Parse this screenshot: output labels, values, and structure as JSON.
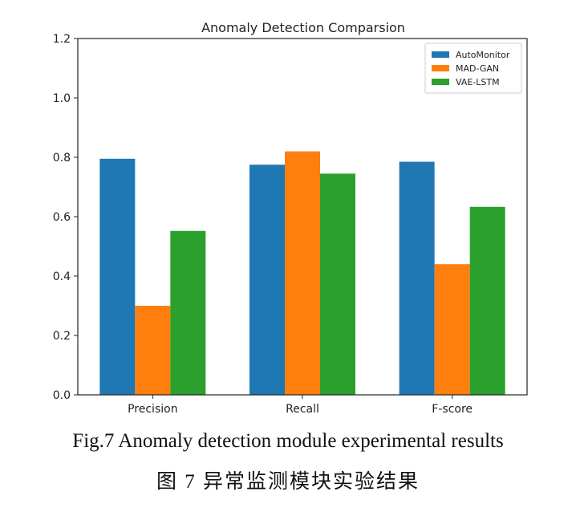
{
  "chart_data": {
    "type": "bar",
    "title": "Anomaly Detection Comparsion",
    "categories": [
      "Precision",
      "Recall",
      "F-score"
    ],
    "series": [
      {
        "name": "AutoMonitor",
        "values": [
          0.795,
          0.775,
          0.785
        ],
        "color": "#1f77b4"
      },
      {
        "name": "MAD-GAN",
        "values": [
          0.3,
          0.82,
          0.44
        ],
        "color": "#ff7f0e"
      },
      {
        "name": "VAE-LSTM",
        "values": [
          0.552,
          0.745,
          0.633
        ],
        "color": "#2ca02c"
      }
    ],
    "ylim": [
      0,
      1.2
    ],
    "yticks": [
      "0.0",
      "0.2",
      "0.4",
      "0.6",
      "0.8",
      "1.0",
      "1.2"
    ],
    "legend_position": "top-right",
    "grid": false
  },
  "caption": {
    "english": "Fig.7    Anomaly detection module experimental results",
    "chinese": "图 7    异常监测模块实验结果"
  }
}
